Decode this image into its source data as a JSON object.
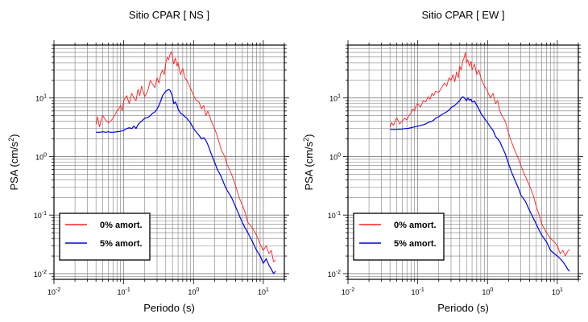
{
  "chart_data": [
    {
      "type": "line",
      "title": "Sitio CPAR [ NS ]",
      "xlabel": "Periodo (s)",
      "ylabel_main": "PSA (cm/s",
      "ylabel_sup": "2",
      "ylabel_end": ")",
      "x_scale": "log",
      "y_scale": "log",
      "xlim": [
        0.01,
        20
      ],
      "ylim": [
        0.008,
        80
      ],
      "grid": true,
      "legend_position": "bottom-left",
      "x_ticks": [
        {
          "base": "10",
          "exp": "-2"
        },
        {
          "base": "10",
          "exp": "-1"
        },
        {
          "base": "10",
          "exp": "0"
        },
        {
          "base": "10",
          "exp": "1"
        }
      ],
      "y_ticks": [
        {
          "base": "10",
          "exp": "-2"
        },
        {
          "base": "10",
          "exp": "-1"
        },
        {
          "base": "10",
          "exp": "0"
        },
        {
          "base": "10",
          "exp": "1"
        }
      ],
      "series": [
        {
          "name": "0% amort.",
          "color": "#ff2020",
          "x": [
            0.04,
            0.042,
            0.045,
            0.048,
            0.05,
            0.055,
            0.06,
            0.065,
            0.07,
            0.075,
            0.08,
            0.085,
            0.09,
            0.095,
            0.1,
            0.11,
            0.12,
            0.13,
            0.14,
            0.15,
            0.16,
            0.17,
            0.18,
            0.2,
            0.22,
            0.24,
            0.26,
            0.28,
            0.3,
            0.32,
            0.34,
            0.36,
            0.38,
            0.4,
            0.42,
            0.44,
            0.46,
            0.48,
            0.5,
            0.52,
            0.55,
            0.58,
            0.6,
            0.65,
            0.7,
            0.75,
            0.8,
            0.9,
            1.0,
            1.1,
            1.2,
            1.3,
            1.4,
            1.5,
            1.6,
            1.8,
            2.0,
            2.2,
            2.5,
            2.8,
            3.0,
            3.5,
            4.0,
            4.5,
            5.0,
            5.5,
            6.0,
            7.0,
            8.0,
            9.0,
            10.0,
            11.0,
            12.0,
            13.0,
            14.0,
            15.0
          ],
          "y": [
            3.5,
            4.8,
            3.2,
            4.5,
            5.0,
            4.2,
            3.8,
            4.0,
            4.5,
            5.2,
            6.0,
            6.5,
            7.5,
            6.0,
            9.0,
            11.0,
            8.0,
            12.0,
            10.0,
            9.0,
            14.0,
            11.0,
            16.0,
            10.5,
            13.0,
            20.0,
            17.0,
            15.0,
            22.0,
            18.0,
            26.0,
            30.0,
            25.0,
            40.0,
            50.0,
            45.0,
            55.0,
            62.0,
            50.0,
            38.0,
            48.0,
            35.0,
            40.0,
            25.0,
            32.0,
            22.0,
            20.0,
            15.0,
            11.0,
            9.0,
            8.5,
            6.5,
            7.5,
            5.0,
            6.0,
            4.0,
            3.0,
            2.2,
            1.3,
            1.0,
            0.75,
            0.5,
            0.32,
            0.2,
            0.15,
            0.11,
            0.075,
            0.06,
            0.045,
            0.032,
            0.025,
            0.03,
            0.022,
            0.025,
            0.016,
            0.017
          ]
        },
        {
          "name": "5% amort.",
          "color": "#0000e0",
          "x": [
            0.04,
            0.045,
            0.05,
            0.055,
            0.06,
            0.065,
            0.07,
            0.08,
            0.09,
            0.1,
            0.11,
            0.12,
            0.13,
            0.14,
            0.15,
            0.16,
            0.17,
            0.18,
            0.2,
            0.22,
            0.24,
            0.26,
            0.28,
            0.3,
            0.32,
            0.34,
            0.36,
            0.38,
            0.4,
            0.42,
            0.44,
            0.46,
            0.48,
            0.5,
            0.52,
            0.55,
            0.58,
            0.6,
            0.65,
            0.7,
            0.75,
            0.8,
            0.9,
            1.0,
            1.1,
            1.2,
            1.3,
            1.4,
            1.5,
            1.6,
            1.8,
            2.0,
            2.2,
            2.5,
            2.8,
            3.0,
            3.5,
            4.0,
            4.5,
            5.0,
            5.5,
            6.0,
            7.0,
            8.0,
            9.0,
            10.0,
            11.0,
            12.0,
            13.0,
            14.0,
            15.0
          ],
          "y": [
            2.6,
            2.6,
            2.65,
            2.6,
            2.65,
            2.6,
            2.6,
            2.65,
            2.7,
            2.8,
            3.0,
            3.1,
            3.0,
            3.3,
            3.0,
            3.5,
            3.8,
            4.0,
            4.5,
            4.6,
            5.0,
            5.5,
            5.8,
            6.5,
            7.5,
            9.0,
            11.0,
            12.0,
            13.0,
            13.5,
            14.0,
            13.5,
            12.0,
            10.5,
            8.0,
            8.5,
            7.5,
            6.5,
            5.5,
            5.2,
            4.8,
            4.5,
            3.8,
            3.0,
            2.6,
            2.3,
            2.0,
            2.1,
            1.9,
            1.6,
            1.1,
            0.8,
            0.6,
            0.45,
            0.32,
            0.27,
            0.2,
            0.14,
            0.1,
            0.075,
            0.06,
            0.05,
            0.035,
            0.025,
            0.02,
            0.015,
            0.018,
            0.014,
            0.012,
            0.01,
            0.011
          ]
        }
      ]
    },
    {
      "type": "line",
      "title": "Sitio CPAR [ EW ]",
      "xlabel": "Periodo (s)",
      "ylabel_main": "PSA (cm/s",
      "ylabel_sup": "2",
      "ylabel_end": ")",
      "x_scale": "log",
      "y_scale": "log",
      "xlim": [
        0.01,
        20
      ],
      "ylim": [
        0.008,
        80
      ],
      "grid": true,
      "legend_position": "bottom-left",
      "x_ticks": [
        {
          "base": "10",
          "exp": "-2"
        },
        {
          "base": "10",
          "exp": "-1"
        },
        {
          "base": "10",
          "exp": "0"
        },
        {
          "base": "10",
          "exp": "1"
        }
      ],
      "y_ticks": [
        {
          "base": "10",
          "exp": "-2"
        },
        {
          "base": "10",
          "exp": "-1"
        },
        {
          "base": "10",
          "exp": "0"
        },
        {
          "base": "10",
          "exp": "1"
        }
      ],
      "series": [
        {
          "name": "0% amort.",
          "color": "#ff2020",
          "x": [
            0.04,
            0.042,
            0.045,
            0.048,
            0.05,
            0.055,
            0.06,
            0.065,
            0.07,
            0.075,
            0.08,
            0.085,
            0.09,
            0.095,
            0.1,
            0.11,
            0.12,
            0.13,
            0.14,
            0.15,
            0.16,
            0.17,
            0.18,
            0.2,
            0.22,
            0.24,
            0.26,
            0.28,
            0.3,
            0.32,
            0.34,
            0.36,
            0.38,
            0.4,
            0.42,
            0.44,
            0.46,
            0.48,
            0.5,
            0.52,
            0.55,
            0.58,
            0.6,
            0.65,
            0.7,
            0.75,
            0.8,
            0.9,
            1.0,
            1.1,
            1.2,
            1.3,
            1.4,
            1.5,
            1.6,
            1.8,
            2.0,
            2.2,
            2.5,
            2.8,
            3.0,
            3.5,
            4.0,
            4.5,
            5.0,
            5.5,
            6.0,
            7.0,
            8.0,
            9.0,
            10.0,
            11.0,
            12.0,
            13.0,
            14.0,
            15.0
          ],
          "y": [
            3.2,
            3.8,
            3.4,
            4.2,
            4.6,
            3.6,
            4.0,
            4.5,
            4.2,
            5.0,
            5.5,
            6.5,
            6.0,
            7.5,
            8.0,
            7.0,
            9.0,
            8.5,
            10.5,
            9.5,
            12.0,
            11.0,
            13.0,
            12.5,
            15.0,
            18.0,
            16.0,
            22.0,
            20.0,
            25.0,
            19.0,
            28.0,
            22.0,
            35.0,
            30.0,
            42.0,
            48.0,
            60.0,
            40.0,
            45.0,
            35.0,
            42.0,
            30.0,
            38.0,
            25.0,
            30.0,
            22.0,
            16.0,
            13.0,
            10.0,
            12.0,
            8.0,
            9.0,
            6.0,
            5.0,
            4.0,
            2.5,
            1.8,
            1.2,
            0.9,
            0.7,
            0.45,
            0.32,
            0.22,
            0.14,
            0.1,
            0.07,
            0.05,
            0.04,
            0.035,
            0.03,
            0.022,
            0.025,
            0.02,
            0.024,
            0.026
          ]
        },
        {
          "name": "5% amort.",
          "color": "#0000e0",
          "x": [
            0.04,
            0.045,
            0.05,
            0.055,
            0.06,
            0.065,
            0.07,
            0.08,
            0.09,
            0.1,
            0.11,
            0.12,
            0.13,
            0.14,
            0.15,
            0.16,
            0.17,
            0.18,
            0.2,
            0.22,
            0.24,
            0.26,
            0.28,
            0.3,
            0.32,
            0.34,
            0.36,
            0.38,
            0.4,
            0.42,
            0.44,
            0.46,
            0.48,
            0.5,
            0.52,
            0.55,
            0.58,
            0.6,
            0.65,
            0.7,
            0.75,
            0.8,
            0.9,
            1.0,
            1.1,
            1.2,
            1.3,
            1.4,
            1.5,
            1.6,
            1.8,
            2.0,
            2.2,
            2.5,
            2.8,
            3.0,
            3.5,
            4.0,
            4.5,
            5.0,
            5.5,
            6.0,
            7.0,
            8.0,
            9.0,
            10.0,
            11.0,
            12.0,
            13.0,
            14.0,
            15.0
          ],
          "y": [
            2.9,
            2.9,
            2.9,
            2.95,
            2.95,
            3.0,
            3.0,
            3.1,
            3.2,
            3.3,
            3.4,
            3.5,
            3.6,
            3.8,
            3.9,
            4.0,
            4.2,
            4.5,
            4.8,
            5.2,
            5.5,
            5.8,
            6.2,
            6.8,
            7.2,
            7.5,
            8.0,
            8.5,
            9.0,
            10.0,
            10.5,
            10.2,
            9.5,
            9.0,
            10.0,
            9.2,
            9.5,
            8.5,
            8.8,
            7.5,
            6.5,
            5.5,
            4.5,
            3.8,
            3.2,
            2.8,
            2.2,
            2.0,
            1.8,
            1.5,
            1.1,
            0.75,
            0.55,
            0.38,
            0.28,
            0.22,
            0.17,
            0.12,
            0.09,
            0.07,
            0.055,
            0.045,
            0.035,
            0.025,
            0.022,
            0.02,
            0.018,
            0.016,
            0.014,
            0.012,
            0.011
          ]
        }
      ]
    }
  ]
}
